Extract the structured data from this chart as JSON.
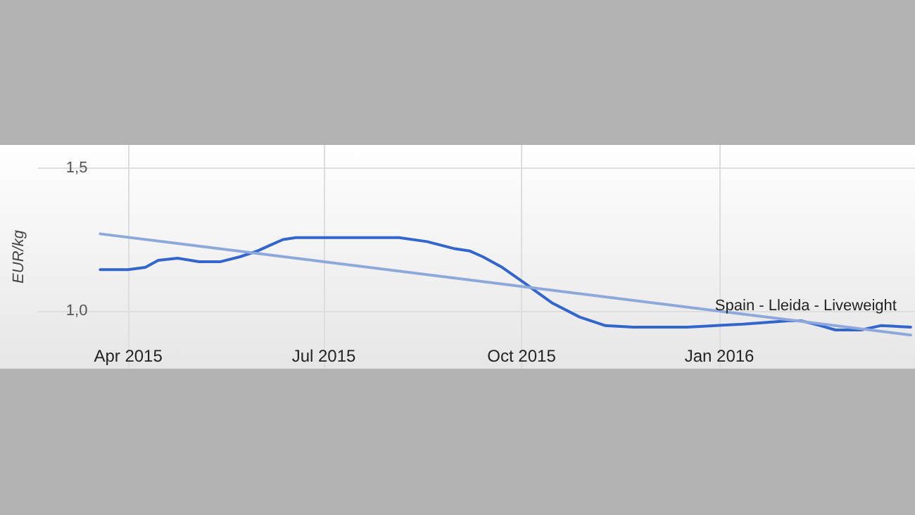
{
  "chart_data": {
    "type": "line",
    "ylabel": "EUR/kg",
    "xlim": [
      "2015-02-18",
      "2016-04-01"
    ],
    "xticks": [
      {
        "value": "2015-04-01",
        "label": "Apr 2015"
      },
      {
        "value": "2015-07-01",
        "label": "Jul 2015"
      },
      {
        "value": "2015-10-01",
        "label": "Oct 2015"
      },
      {
        "value": "2016-01-01",
        "label": "Jan 2016"
      }
    ],
    "ylim": [
      0.8,
      1.58
    ],
    "yticks": [
      {
        "value": 1.0,
        "label": "1,0"
      },
      {
        "value": 1.5,
        "label": "1,5"
      }
    ],
    "grid": true,
    "marker": "none",
    "line_style": "solid",
    "series": [
      {
        "name": "Spain - Lleida - Liveweight",
        "color": "#3366cc",
        "x": [
          "2015-03-19",
          "2015-04-01",
          "2015-04-09",
          "2015-04-15",
          "2015-04-24",
          "2015-05-04",
          "2015-05-14",
          "2015-05-23",
          "2015-05-31",
          "2015-06-06",
          "2015-06-12",
          "2015-06-18",
          "2015-07-01",
          "2015-08-05",
          "2015-08-18",
          "2015-08-31",
          "2015-09-07",
          "2015-09-13",
          "2015-09-22",
          "2015-10-03",
          "2015-10-15",
          "2015-10-28",
          "2015-11-09",
          "2015-11-22",
          "2015-12-17",
          "2016-01-12",
          "2016-02-02",
          "2016-02-08",
          "2016-02-17",
          "2016-02-24",
          "2016-03-07",
          "2016-03-16",
          "2016-03-30"
        ],
        "values": [
          1.145,
          1.145,
          1.153,
          1.178,
          1.185,
          1.173,
          1.173,
          1.19,
          1.21,
          1.23,
          1.25,
          1.257,
          1.257,
          1.257,
          1.243,
          1.218,
          1.21,
          1.19,
          1.153,
          1.095,
          1.03,
          0.98,
          0.95,
          0.945,
          0.945,
          0.955,
          0.967,
          0.967,
          0.95,
          0.935,
          0.935,
          0.95,
          0.945
        ]
      },
      {
        "type": "line",
        "color": "#8fa8dc",
        "x": [
          "2015-03-19",
          "2016-03-30"
        ],
        "values": [
          1.27,
          0.917
        ]
      }
    ]
  }
}
